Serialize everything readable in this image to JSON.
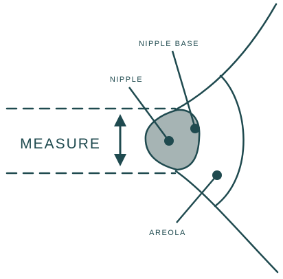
{
  "labels": {
    "nipple_base": "NIPPLE BASE",
    "nipple": "NIPPLE",
    "measure": "MEASURE",
    "areola": "AREOLA"
  }
}
